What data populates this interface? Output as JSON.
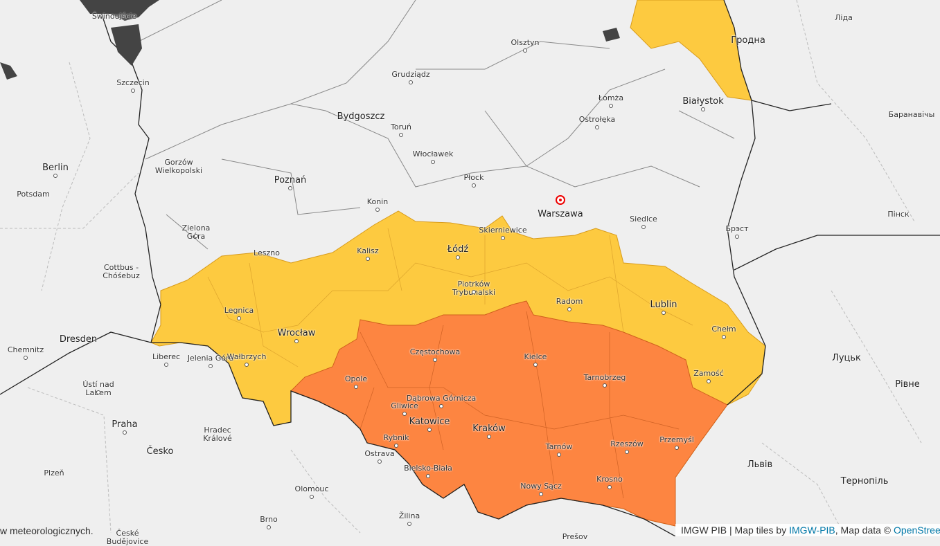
{
  "map": {
    "colors": {
      "background": "#efefef",
      "warning_level_2": "#fdca40",
      "warning_level_3": "#fd8541",
      "water": "#444444",
      "borders": "#222222"
    },
    "cities": [
      "Świnoujście",
      "Szczecin",
      "Olsztyn",
      "Гродна",
      "Лiда",
      "Grudziądz",
      "Bydgoszcz",
      "Toruń",
      "Łomża",
      "Białystok",
      "Ostrołęka",
      "Баранавічы",
      "Berlin",
      "Potsdam",
      "Gorzów Wielkopolski",
      "Włocławek",
      "Płock",
      "Poznań",
      "Konin",
      "Warszawa",
      "Siedlce",
      "Пінск",
      "Брэст",
      "Zielona Góra",
      "Skierniewice",
      "Leszno",
      "Kalisz",
      "Łódź",
      "Cottbus - Chóśebuz",
      "Piotrków Trybunalski",
      "Radom",
      "Legnica",
      "Lublin",
      "Wrocław",
      "Chełm",
      "Dresden",
      "Chemnitz",
      "Liberec",
      "Jelenia Góra",
      "Wałbrzych",
      "Częstochowa",
      "Kielce",
      "Opole",
      "Tarnobrzeg",
      "Zamość",
      "Луцьк",
      "Ústí nad Labem",
      "Dąbrowa Górnicza",
      "Gliwice",
      "Рівне",
      "Katowice",
      "Praha",
      "Hradec Králové",
      "Kraków",
      "Rybnik",
      "Tarnów",
      "Rzeszów",
      "Česko",
      "Przemyśl",
      "Ostrava",
      "Bielsko-Biała",
      "Львів",
      "Plzeň",
      "Krosno",
      "Nowy Sącz",
      "Olomouc",
      "Тернопіль",
      "Brno",
      "Žilina",
      "České Budějovice",
      "Prešov"
    ],
    "marker": "Warszawa"
  },
  "legend_fragment": "w meteorologicznych.",
  "attribution": {
    "prefix": "IMGW PIB | Map tiles by ",
    "tiles_link": "IMGW-PIB",
    "mid": ", Map data © ",
    "osm_link": "OpenStreetMap"
  }
}
